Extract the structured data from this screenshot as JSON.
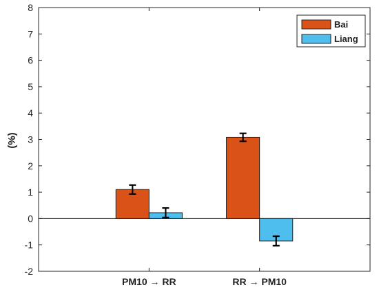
{
  "chart_data": {
    "type": "bar",
    "categories": [
      "PM10 → RR",
      "RR → PM10"
    ],
    "series": [
      {
        "name": "Bai",
        "values": [
          1.1,
          3.08
        ],
        "error": [
          0.17,
          0.15
        ],
        "color": "#D95319"
      },
      {
        "name": "Liang",
        "values": [
          0.22,
          -0.85
        ],
        "error": [
          0.18,
          0.18
        ],
        "color": "#4DBEEE"
      }
    ],
    "title": "",
    "xlabel": "",
    "ylabel": "(%)",
    "ylim": [
      -2,
      8
    ],
    "yticks": [
      -2,
      -1,
      0,
      1,
      2,
      3,
      4,
      5,
      6,
      7,
      8
    ],
    "ytick_labels": [
      "-2",
      "-1",
      "0",
      "1",
      "2",
      "3",
      "4",
      "5",
      "6",
      "7",
      "8"
    ],
    "grid": false,
    "legend_position": "top-right"
  }
}
